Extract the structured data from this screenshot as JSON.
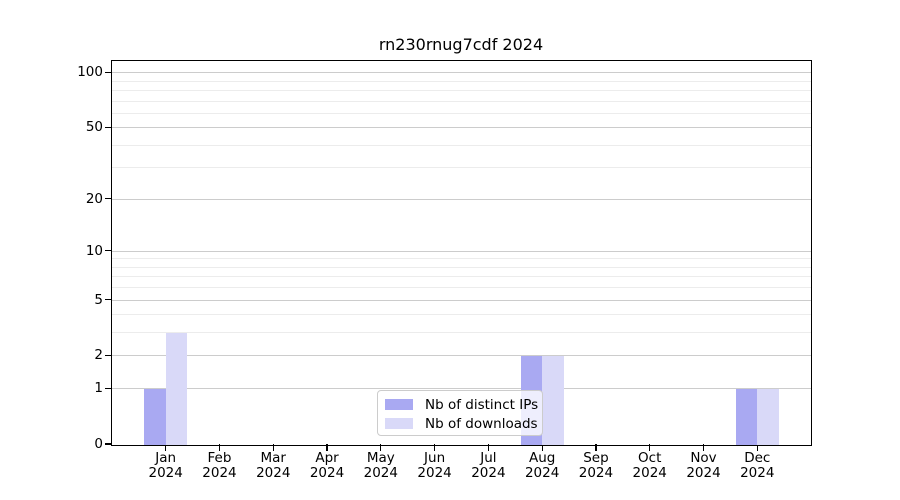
{
  "chart_data": {
    "type": "bar",
    "title": "rn230rnug7cdf 2024",
    "categories": [
      "Jan 2024",
      "Feb 2024",
      "Mar 2024",
      "Apr 2024",
      "May 2024",
      "Jun 2024",
      "Jul 2024",
      "Aug 2024",
      "Sep 2024",
      "Oct 2024",
      "Nov 2024",
      "Dec 2024"
    ],
    "series": [
      {
        "name": "Nb of distinct IPs",
        "color": "#a9a9f2",
        "values": [
          1,
          0,
          0,
          0,
          0,
          0,
          0,
          2,
          0,
          0,
          0,
          1
        ]
      },
      {
        "name": "Nb of downloads",
        "color": "#d9d9f8",
        "values": [
          3,
          0,
          0,
          0,
          0,
          0,
          0,
          2,
          0,
          0,
          0,
          1
        ]
      }
    ],
    "xlabel": "",
    "ylabel": "",
    "y_axis": {
      "scale": "log1p",
      "ylim": [
        0,
        115
      ],
      "tick_values": [
        0,
        1,
        2,
        5,
        10,
        20,
        50,
        100
      ],
      "tick_labels": [
        "0",
        "1",
        "2",
        "5",
        "10",
        "20",
        "50",
        "100"
      ],
      "minor_gridlines": [
        3,
        4,
        6,
        7,
        8,
        9,
        30,
        40,
        60,
        70,
        80,
        90
      ]
    },
    "legend": {
      "position": "lower center"
    },
    "grid": true,
    "colors": {
      "major_grid": "#cccccc",
      "minor_grid": "#ececec",
      "spine": "#000000",
      "text": "#000000"
    }
  }
}
